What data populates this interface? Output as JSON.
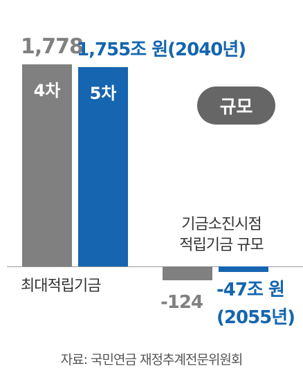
{
  "chart_data": {
    "type": "bar",
    "categories": [
      "최대적립기금",
      "기금소진시점\n적립기금 규모"
    ],
    "series": [
      {
        "name": "4차",
        "color": "#808080",
        "values": [
          1778,
          -124
        ],
        "value_labels": [
          "1,778",
          "-124"
        ]
      },
      {
        "name": "5차",
        "color": "#1565b0",
        "values": [
          1755,
          -47
        ],
        "value_labels": [
          "1,755조 원(2040년)",
          "-47조 원\n(2055년)"
        ]
      }
    ],
    "badge": "규모",
    "source": "자료: 국민연금 재정추계전문위원회"
  }
}
